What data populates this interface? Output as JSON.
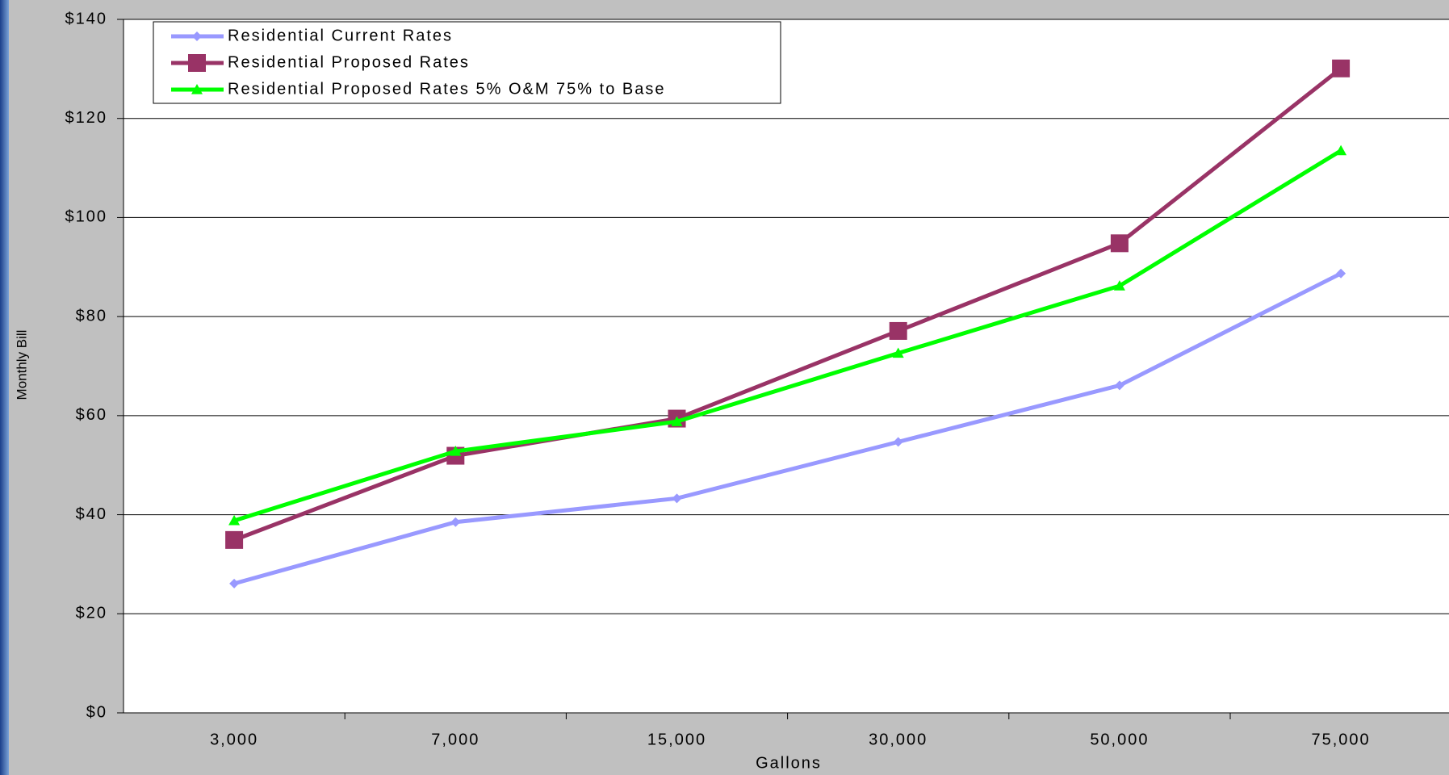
{
  "chart_data": {
    "type": "line",
    "x_label": "Gallons",
    "y_label": "Monthly Bill",
    "categories": [
      "3,000",
      "7,000",
      "15,000",
      "30,000",
      "50,000",
      "75,000"
    ],
    "series": [
      {
        "name": "Residential Current Rates",
        "color": "#9999ff",
        "marker": "diamond",
        "values": [
          26.1,
          38.5,
          43.3,
          54.7,
          66.1,
          88.7
        ]
      },
      {
        "name": "Residential Proposed Rates",
        "color": "#993366",
        "marker": "square",
        "values": [
          34.9,
          51.9,
          59.4,
          77.1,
          94.8,
          130.1
        ]
      },
      {
        "name": "Residential Proposed Rates 5% O&M 75% to Base",
        "color": "#00ff00",
        "marker": "triangle",
        "values": [
          38.8,
          52.8,
          58.8,
          72.6,
          86.2,
          113.5
        ]
      }
    ],
    "ylim": [
      0,
      140
    ],
    "yticks": [
      {
        "value": 0,
        "label": "$0"
      },
      {
        "value": 20,
        "label": "$20"
      },
      {
        "value": 40,
        "label": "$40"
      },
      {
        "value": 60,
        "label": "$60"
      },
      {
        "value": 80,
        "label": "$80"
      },
      {
        "value": 100,
        "label": "$100"
      },
      {
        "value": 120,
        "label": "$120"
      },
      {
        "value": 140,
        "label": "$140"
      }
    ],
    "grid": true,
    "legend": "upper left"
  }
}
